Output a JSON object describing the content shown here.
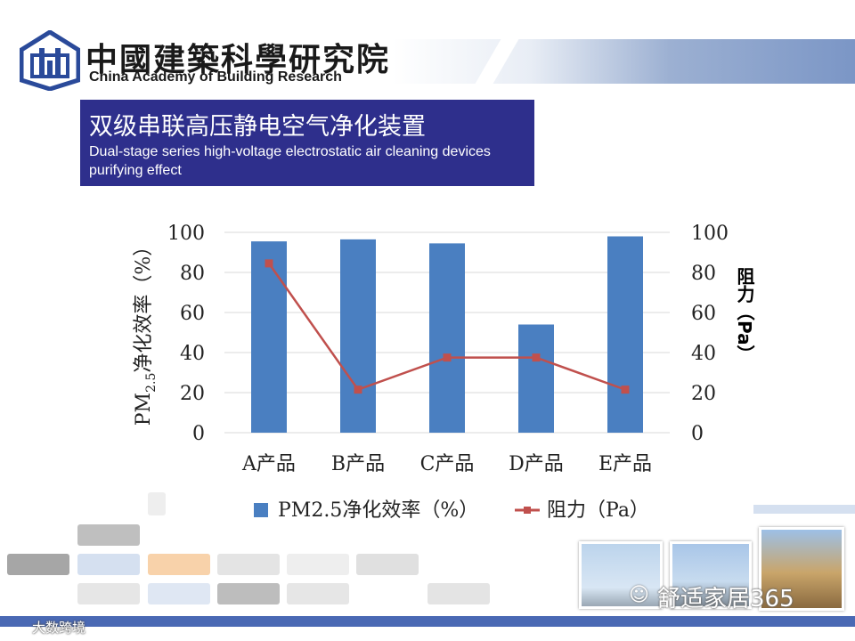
{
  "header": {
    "org_cn": "中國建築科學研究院",
    "org_en": "China Academy of Building Research"
  },
  "slide": {
    "title_cn": "双级串联高压静电空气净化装置",
    "title_en": "Dual-stage series high-voltage electrostatic air cleaning devices purifying effect"
  },
  "chart_data": {
    "type": "bar",
    "categories": [
      "A产品",
      "B产品",
      "C产品",
      "D产品",
      "E产品"
    ],
    "series": [
      {
        "name": "PM2.5净化效率（%）",
        "kind": "bar",
        "axis": "left",
        "values": [
          95.5,
          96.5,
          94.5,
          54,
          98
        ]
      },
      {
        "name": "阻力（Pa）",
        "kind": "line",
        "axis": "right",
        "values": [
          84.5,
          21.5,
          37.5,
          37.5,
          21.5
        ]
      }
    ],
    "ylabel_left_main": "PM",
    "ylabel_left_sub": "2.5",
    "ylabel_left_rest": "净化效率（%）",
    "ylabel_right": "阻力（Pa）",
    "ylim": [
      0,
      100
    ],
    "y2lim": [
      0,
      100
    ],
    "yticks": [
      0,
      20,
      40,
      60,
      80,
      100
    ],
    "grid": true,
    "legend": "bottom",
    "colors": {
      "bar": "#4a7fc1",
      "line": "#c0504d"
    }
  },
  "watermarks": {
    "bottom_right": "舒适家居365",
    "bottom_left": "大数跨境"
  }
}
